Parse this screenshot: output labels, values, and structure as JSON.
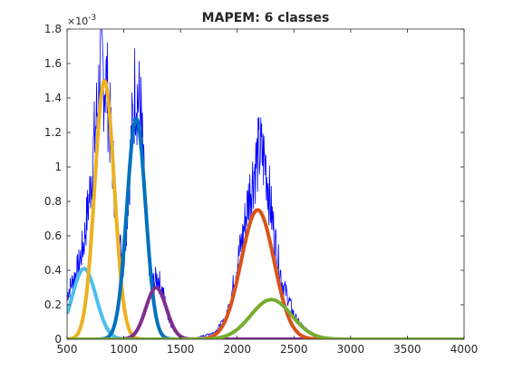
{
  "chart_data": {
    "type": "line",
    "title": "MAPEM: 6 classes",
    "xlabel": "",
    "ylabel": "",
    "xlim": [
      500,
      4000
    ],
    "ylim": [
      0,
      0.0018
    ],
    "x_ticks": [
      500,
      1000,
      1500,
      2000,
      2500,
      3000,
      3500,
      4000
    ],
    "x_tick_labels": [
      "500",
      "1000",
      "1500",
      "2000",
      "2500",
      "3000",
      "3500",
      "4000"
    ],
    "y_ticks": [
      0,
      0.0002,
      0.0004,
      0.0006,
      0.0008,
      0.001,
      0.0012,
      0.0014,
      0.0016,
      0.0018
    ],
    "y_tick_labels": [
      "0",
      "0.2",
      "0.4",
      "0.6",
      "0.8",
      "1",
      "1.2",
      "1.4",
      "1.6",
      "1.8"
    ],
    "y_exponent_label": "×10",
    "y_exponent_power": "-3",
    "grid": false,
    "histogram": {
      "name": "",
      "color": "#0000ff",
      "x": [
        500,
        550,
        600,
        650,
        700,
        750,
        800,
        850,
        900,
        950,
        1000,
        1050,
        1100,
        1150,
        1200,
        1250,
        1300,
        1350,
        1400,
        1450,
        1500,
        1600,
        1700,
        1800,
        1900,
        1950,
        2000,
        2050,
        2100,
        2150,
        2200,
        2250,
        2300,
        2350,
        2400,
        2450,
        2500,
        2550,
        2600,
        2650,
        2700,
        2800,
        3000,
        4000
      ],
      "y": [
        0.00026,
        0.00034,
        0.00042,
        0.00057,
        0.00085,
        0.00122,
        0.00158,
        0.00148,
        0.00105,
        0.00058,
        0.00044,
        0.00098,
        0.00148,
        0.00132,
        0.00058,
        0.00032,
        0.00036,
        0.00026,
        0.00011,
        5e-05,
        2e-05,
        0.0,
        2e-05,
        4e-05,
        0.00012,
        0.00026,
        0.00044,
        0.0006,
        0.00082,
        0.00098,
        0.0011,
        0.00102,
        0.00074,
        0.0005,
        0.00032,
        0.00024,
        0.00014,
        9e-05,
        6e-05,
        3e-05,
        1e-05,
        0.0,
        0.0,
        0.0
      ]
    },
    "series": [
      {
        "color": "#4dbeee",
        "mean": 650,
        "sd": 105,
        "peak": 0.00041
      },
      {
        "color": "#edb120",
        "mean": 830,
        "sd": 85,
        "peak": 0.0015
      },
      {
        "color": "#0072bd",
        "mean": 1110,
        "sd": 82,
        "peak": 0.00128
      },
      {
        "color": "#7e2f8e",
        "mean": 1285,
        "sd": 90,
        "peak": 0.0003
      },
      {
        "color": "#d95319",
        "mean": 2180,
        "sd": 145,
        "peak": 0.00075
      },
      {
        "color": "#77ac30",
        "mean": 2300,
        "sd": 180,
        "peak": 0.00023
      }
    ]
  }
}
